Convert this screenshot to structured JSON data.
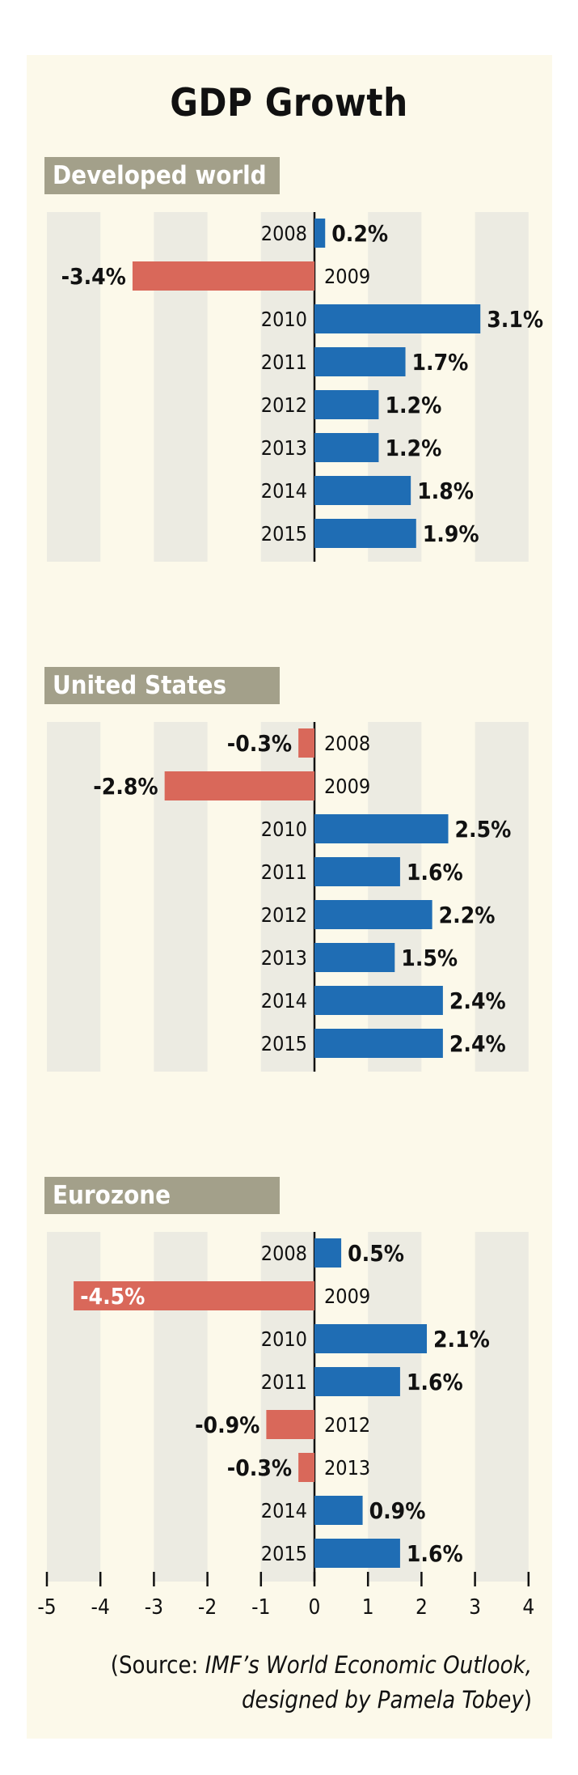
{
  "title": "GDP Growth",
  "colors": {
    "positive": "#1f6db4",
    "negative": "#d9685a",
    "band": "#ecebe2",
    "header_bg": "#a3a08a",
    "card_bg": "#fcf9ea"
  },
  "source": {
    "open": "(Source: ",
    "publication": "IMF’s World Economic Outlook,",
    "credit": "designed by Pamela Tobey",
    "close": ")"
  },
  "chart_data": [
    {
      "type": "bar",
      "orientation": "horizontal",
      "title": "Developed world",
      "categories": [
        "2008",
        "2009",
        "2010",
        "2011",
        "2012",
        "2013",
        "2014",
        "2015"
      ],
      "values": [
        0.2,
        -3.4,
        3.1,
        1.7,
        1.2,
        1.2,
        1.8,
        1.9
      ],
      "labels": [
        "0.2%",
        "-3.4%",
        "3.1%",
        "1.7%",
        "1.2%",
        "1.2%",
        "1.8%",
        "1.9%"
      ],
      "xlim": [
        -5,
        4
      ]
    },
    {
      "type": "bar",
      "orientation": "horizontal",
      "title": "United States",
      "categories": [
        "2008",
        "2009",
        "2010",
        "2011",
        "2012",
        "2013",
        "2014",
        "2015"
      ],
      "values": [
        -0.3,
        -2.8,
        2.5,
        1.6,
        2.2,
        1.5,
        2.4,
        2.4
      ],
      "labels": [
        "-0.3%",
        "-2.8%",
        "2.5%",
        "1.6%",
        "2.2%",
        "1.5%",
        "2.4%",
        "2.4%"
      ],
      "xlim": [
        -5,
        4
      ]
    },
    {
      "type": "bar",
      "orientation": "horizontal",
      "title": "Eurozone",
      "categories": [
        "2008",
        "2009",
        "2010",
        "2011",
        "2012",
        "2013",
        "2014",
        "2015"
      ],
      "values": [
        0.5,
        -4.5,
        2.1,
        1.6,
        -0.9,
        -0.3,
        0.9,
        1.6
      ],
      "labels": [
        "0.5%",
        "-4.5%",
        "2.1%",
        "1.6%",
        "-0.9%",
        "-0.3%",
        "0.9%",
        "1.6%"
      ],
      "xlim": [
        -5,
        4
      ]
    }
  ],
  "axis": {
    "ticks": [
      "-5",
      "-4",
      "-3",
      "-2",
      "-1",
      "0",
      "1",
      "2",
      "3",
      "4"
    ]
  }
}
